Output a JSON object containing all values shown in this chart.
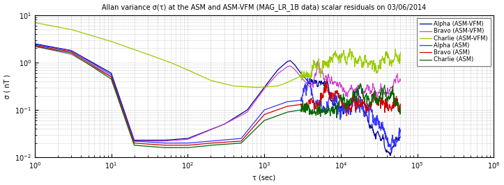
{
  "title": "Allan variance σ(τ) at the ASM and ASM-VFM (MAG_LR_1B data) scalar residuals on 03/06/2014",
  "xlabel": "τ (sec)",
  "ylabel": "σ ( nT )",
  "xlim": [
    1,
    1000000.0
  ],
  "ylim": [
    0.01,
    10
  ],
  "colors": {
    "alpha_asmvfm": "#000099",
    "bravo_asmvfm": "#CC44CC",
    "charlie_asmvfm": "#99CC00",
    "alpha_asm": "#3333FF",
    "bravo_asm": "#CC0000",
    "charlie_asm": "#006600"
  },
  "labels": {
    "alpha_asmvfm": "Alpha (ASM-VFM)",
    "bravo_asmvfm": "Bravo (ASM-VFM)",
    "charlie_asmvfm": "Charlie (ASM-VFM)",
    "alpha_asm": "Alpha (ASM)",
    "bravo_asm": "Bravo (ASM)",
    "charlie_asm": "Charlie (ASM)"
  },
  "background_color": "#ffffff"
}
